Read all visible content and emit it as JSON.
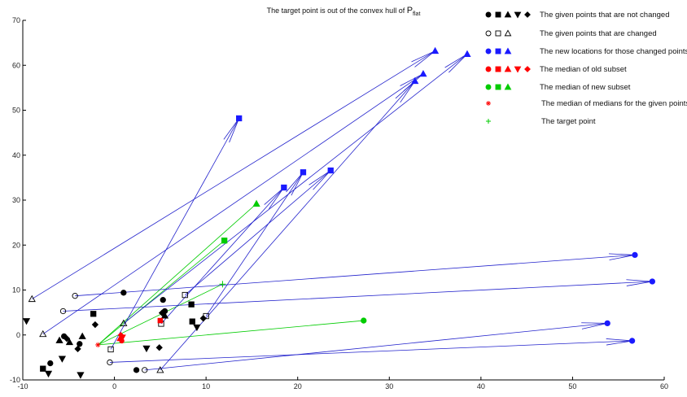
{
  "chart_data": {
    "type": "scatter",
    "title": "The target point is out of the convex hull of ",
    "title_symbol": "P",
    "title_subscript": "flat",
    "xlim": [
      -10,
      60
    ],
    "ylim": [
      -10,
      70
    ],
    "x_ticks": [
      -10,
      0,
      10,
      20,
      30,
      40,
      50,
      60
    ],
    "y_ticks": [
      -10,
      0,
      10,
      20,
      30,
      40,
      50,
      60,
      70
    ],
    "grid": false,
    "legend_position": "top-right",
    "colors": {
      "axis": "#000000",
      "arrow": "#2222cc",
      "fixed": "#000000",
      "new_loc": "#1a1aff",
      "old_median": "#ff0000",
      "new_median": "#00cc00",
      "target": "#00cc00"
    },
    "legend": [
      {
        "markers": [
          {
            "s": "circle",
            "f": true,
            "c": "#000000"
          },
          {
            "s": "square",
            "f": true,
            "c": "#000000"
          },
          {
            "s": "tri-up",
            "f": true,
            "c": "#000000"
          },
          {
            "s": "tri-down",
            "f": true,
            "c": "#000000"
          },
          {
            "s": "diamond",
            "f": true,
            "c": "#000000"
          }
        ],
        "label": "The given points that are not changed"
      },
      {
        "markers": [
          {
            "s": "circle",
            "f": false,
            "c": "#000000"
          },
          {
            "s": "square",
            "f": false,
            "c": "#000000"
          },
          {
            "s": "tri-up",
            "f": false,
            "c": "#000000"
          }
        ],
        "label": "The given points that are changed"
      },
      {
        "markers": [
          {
            "s": "circle",
            "f": true,
            "c": "#1a1aff"
          },
          {
            "s": "square",
            "f": true,
            "c": "#1a1aff"
          },
          {
            "s": "tri-up",
            "f": true,
            "c": "#1a1aff"
          }
        ],
        "label": "The new locations for those changed points"
      },
      {
        "markers": [
          {
            "s": "circle",
            "f": true,
            "c": "#ff0000"
          },
          {
            "s": "square",
            "f": true,
            "c": "#ff0000"
          },
          {
            "s": "tri-up",
            "f": true,
            "c": "#ff0000"
          },
          {
            "s": "tri-down",
            "f": true,
            "c": "#ff0000"
          },
          {
            "s": "diamond",
            "f": true,
            "c": "#ff0000"
          }
        ],
        "label": "The median of old subset"
      },
      {
        "markers": [
          {
            "s": "circle",
            "f": true,
            "c": "#00cc00"
          },
          {
            "s": "square",
            "f": true,
            "c": "#00cc00"
          },
          {
            "s": "tri-up",
            "f": true,
            "c": "#00cc00"
          }
        ],
        "label": "The median of new subset"
      },
      {
        "markers": [
          {
            "s": "asterisk",
            "f": false,
            "c": "#ff0000"
          }
        ],
        "label": "The median of medians for the given points"
      },
      {
        "markers": [
          {
            "s": "plus",
            "f": false,
            "c": "#00cc00"
          }
        ],
        "label": "The target point"
      }
    ],
    "fixed_points": [
      {
        "s": "circle",
        "x": -5.5,
        "y": -0.3
      },
      {
        "s": "circle",
        "x": -7.0,
        "y": -6.3
      },
      {
        "s": "circle",
        "x": -3.8,
        "y": -2.0
      },
      {
        "s": "circle",
        "x": 1.0,
        "y": 9.4
      },
      {
        "s": "circle",
        "x": 2.4,
        "y": -7.8
      },
      {
        "s": "circle",
        "x": 5.3,
        "y": 7.8
      },
      {
        "s": "circle",
        "x": 5.5,
        "y": 5.3
      },
      {
        "s": "square",
        "x": -7.8,
        "y": -7.5
      },
      {
        "s": "square",
        "x": -2.3,
        "y": 4.7
      },
      {
        "s": "square",
        "x": 8.4,
        "y": 6.8
      },
      {
        "s": "square",
        "x": 8.5,
        "y": 3.0
      },
      {
        "s": "tri-up",
        "x": -6.0,
        "y": -1.2
      },
      {
        "s": "tri-up",
        "x": -3.5,
        "y": -0.3
      },
      {
        "s": "tri-up",
        "x": 5.5,
        "y": 4.3
      },
      {
        "s": "tri-up",
        "x": -4.9,
        "y": -1.6
      },
      {
        "s": "tri-down",
        "x": -9.6,
        "y": 3.1
      },
      {
        "s": "tri-down",
        "x": -7.2,
        "y": -8.6
      },
      {
        "s": "tri-down",
        "x": -5.7,
        "y": -5.3
      },
      {
        "s": "tri-down",
        "x": -3.7,
        "y": -8.9
      },
      {
        "s": "tri-down",
        "x": 3.5,
        "y": -3.0
      },
      {
        "s": "tri-down",
        "x": 9.0,
        "y": 1.7
      },
      {
        "s": "diamond",
        "x": -2.1,
        "y": 2.3
      },
      {
        "s": "diamond",
        "x": -4.0,
        "y": -3.1
      },
      {
        "s": "diamond",
        "x": 4.9,
        "y": -2.8
      },
      {
        "s": "diamond",
        "x": 9.7,
        "y": 3.7
      },
      {
        "s": "diamond",
        "x": 5.2,
        "y": 4.9
      },
      {
        "s": "diamond",
        "x": -5.2,
        "y": -0.8
      }
    ],
    "changed_points": [
      {
        "s": "tri-up",
        "fromX": -9.0,
        "fromY": 8.0,
        "toX": 35.0,
        "toY": 63.2
      },
      {
        "s": "tri-up",
        "fromX": -7.8,
        "fromY": 0.2,
        "toX": 33.7,
        "toY": 58.1
      },
      {
        "s": "tri-up",
        "fromX": 1.0,
        "fromY": 2.6,
        "toX": 38.5,
        "toY": 62.5
      },
      {
        "s": "tri-up",
        "fromX": 5.0,
        "fromY": -7.8,
        "toX": 32.8,
        "toY": 56.5
      },
      {
        "s": "square",
        "fromX": -0.4,
        "fromY": -3.2,
        "toX": 13.6,
        "toY": 48.2
      },
      {
        "s": "square",
        "fromX": 5.1,
        "fromY": 2.5,
        "toX": 18.5,
        "toY": 32.8
      },
      {
        "s": "square",
        "fromX": 10.0,
        "fromY": 4.2,
        "toX": 20.6,
        "toY": 36.2
      },
      {
        "s": "square",
        "fromX": 7.7,
        "fromY": 8.9,
        "toX": 23.6,
        "toY": 36.6
      },
      {
        "s": "circle",
        "fromX": -4.3,
        "fromY": 8.7,
        "toX": 56.8,
        "toY": 17.8
      },
      {
        "s": "circle",
        "fromX": -5.6,
        "fromY": 5.3,
        "toX": 58.7,
        "toY": 11.9
      },
      {
        "s": "circle",
        "fromX": -0.5,
        "fromY": -6.1,
        "toX": 56.5,
        "toY": -1.3
      },
      {
        "s": "circle",
        "fromX": 3.3,
        "fromY": -7.8,
        "toX": 53.8,
        "toY": 2.6
      }
    ],
    "old_medians": [
      {
        "s": "circle",
        "x": 0.8,
        "y": -1.3
      },
      {
        "s": "square",
        "x": 5.0,
        "y": 3.2
      },
      {
        "s": "tri-up",
        "x": 0.6,
        "y": -0.8
      },
      {
        "s": "tri-down",
        "x": 0.9,
        "y": -0.5
      },
      {
        "s": "diamond",
        "x": 0.7,
        "y": 0.0
      }
    ],
    "new_medians": [
      {
        "s": "circle",
        "x": 27.2,
        "y": 3.2
      },
      {
        "s": "square",
        "x": 12.0,
        "y": 21.0
      },
      {
        "s": "tri-up",
        "x": 15.5,
        "y": 29.2
      }
    ],
    "median_of_medians": {
      "x": -1.8,
      "y": -2.2
    },
    "target": {
      "x": 11.8,
      "y": 11.3
    },
    "green_links": [
      {
        "fromX": -1.8,
        "fromY": -2.2,
        "toX": 27.2,
        "toY": 3.2
      },
      {
        "fromX": -1.8,
        "fromY": -2.2,
        "toX": 15.5,
        "toY": 29.2
      },
      {
        "fromX": -1.8,
        "fromY": -2.2,
        "toX": 12.0,
        "toY": 21.0
      },
      {
        "fromX": -1.8,
        "fromY": -2.2,
        "toX": 11.8,
        "toY": 11.3
      }
    ]
  }
}
